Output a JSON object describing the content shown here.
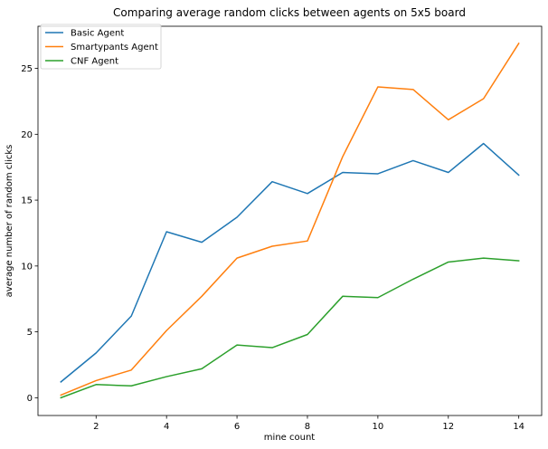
{
  "chart_data": {
    "type": "line",
    "title": "Comparing average random clicks between agents on 5x5 board",
    "xlabel": "mine count",
    "ylabel": "average number of random clicks",
    "x": [
      1,
      2,
      3,
      4,
      5,
      6,
      7,
      8,
      9,
      10,
      11,
      12,
      13,
      14
    ],
    "xlim": [
      0.35,
      14.65
    ],
    "ylim": [
      -1.35,
      28.2
    ],
    "xticks": [
      "2",
      "4",
      "6",
      "8",
      "10",
      "12",
      "14"
    ],
    "yticks": [
      "0",
      "5",
      "10",
      "15",
      "20",
      "25"
    ],
    "grid": false,
    "legend_position": "top-left",
    "series": [
      {
        "name": "Basic Agent",
        "color": "#1f77b4",
        "values": [
          1.2,
          3.4,
          6.2,
          12.6,
          11.8,
          13.7,
          16.4,
          15.5,
          17.1,
          17.0,
          18.0,
          17.1,
          19.3,
          16.9
        ]
      },
      {
        "name": "Smartypants Agent",
        "color": "#ff7f0e",
        "values": [
          0.2,
          1.3,
          2.1,
          5.1,
          7.7,
          10.6,
          11.5,
          11.9,
          18.3,
          23.6,
          23.4,
          21.1,
          22.7,
          26.9
        ]
      },
      {
        "name": "CNF Agent",
        "color": "#2ca02c",
        "values": [
          0.0,
          1.0,
          0.9,
          1.6,
          2.2,
          4.0,
          3.8,
          4.8,
          7.7,
          7.6,
          9.0,
          10.3,
          10.6,
          10.4
        ]
      }
    ]
  }
}
